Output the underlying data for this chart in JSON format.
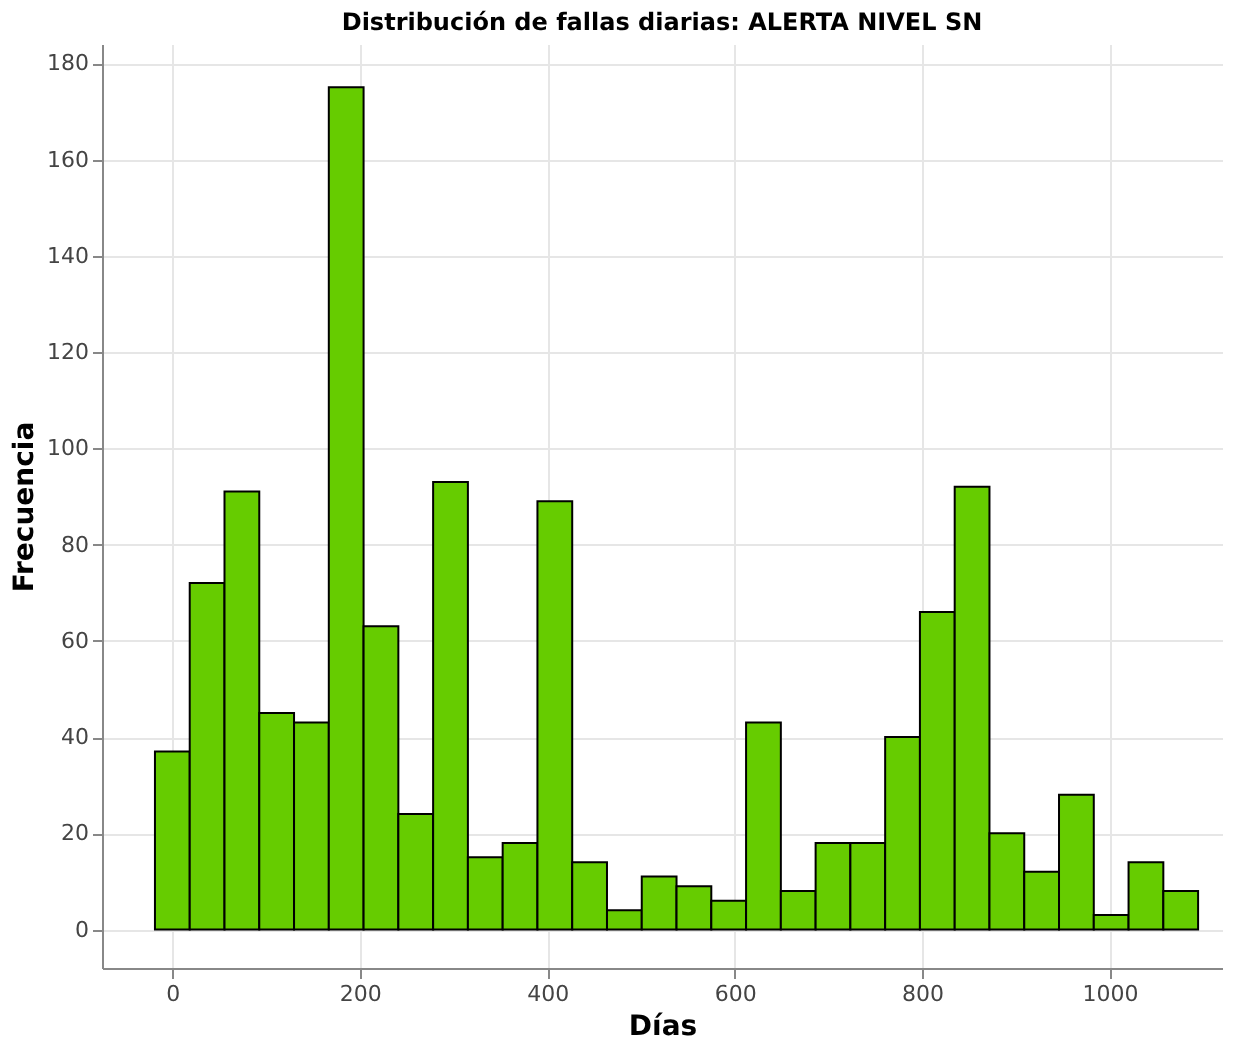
{
  "chart_data": {
    "type": "histogram",
    "title": "Distribución de fallas diarias: ALERTA NIVEL SN",
    "xlabel": "Días",
    "ylabel": "Frecuencia",
    "bins": [
      -18.5,
      18.6,
      55.7,
      92.8,
      129.9,
      167,
      204.1,
      241.2,
      278.3,
      315.4,
      352.5,
      389.6,
      426.7,
      463.8,
      500.9,
      538,
      575.1,
      612.2,
      649.3,
      686.4,
      723.5,
      760.6,
      797.7,
      834.8,
      871.9,
      909,
      946.1,
      983.2,
      1020.3,
      1057.4,
      1094.5
    ],
    "values": [
      37,
      72,
      91,
      45,
      43,
      175,
      63,
      24,
      93,
      15,
      18,
      89,
      14,
      4,
      11,
      9,
      6,
      43,
      8,
      18,
      18,
      40,
      66,
      92,
      20,
      12,
      28,
      3,
      14,
      8
    ],
    "color": "#66cc00",
    "xlim": [
      -75,
      1120
    ],
    "ylim": [
      -8,
      184
    ],
    "xticks": [
      0,
      200,
      400,
      600,
      800,
      1000
    ],
    "yticks": [
      0,
      20,
      40,
      60,
      80,
      100,
      120,
      140,
      160,
      180
    ],
    "grid": true
  }
}
